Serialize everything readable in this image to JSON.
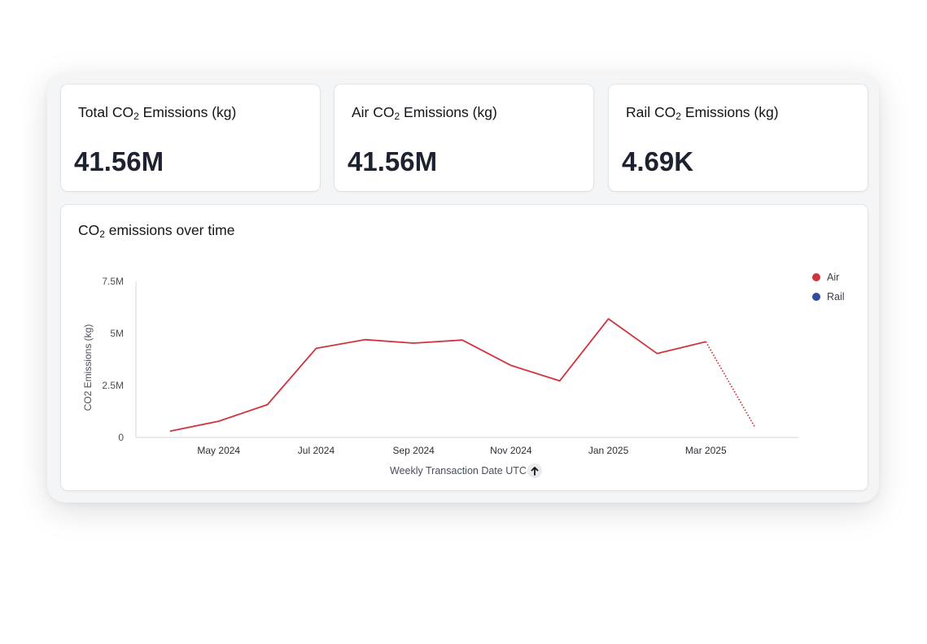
{
  "kpis": [
    {
      "title_pre": "Total CO",
      "title_sub": "2",
      "title_post": " Emissions (kg)",
      "value": "41.56M"
    },
    {
      "title_pre": "Air CO",
      "title_sub": "2",
      "title_post": " Emissions (kg)",
      "value": "41.56M"
    },
    {
      "title_pre": "Rail CO",
      "title_sub": "2",
      "title_post": " Emissions (kg)",
      "value": "4.69K"
    }
  ],
  "chart_card": {
    "title_pre": "CO",
    "title_sub": "2",
    "title_post": " emissions over time",
    "x_axis_title": "Weekly Transaction Date UTC",
    "sort_icon": "arrow-up-icon"
  },
  "chart_data": {
    "type": "line",
    "ylabel": "CO2 Emissions (kg)",
    "xlabel": "Weekly Transaction Date UTC",
    "ylim": [
      0,
      7500000
    ],
    "y_ticks": [
      {
        "value": 0,
        "label": "0"
      },
      {
        "value": 2500000,
        "label": "2.5M"
      },
      {
        "value": 5000000,
        "label": "5M"
      },
      {
        "value": 7500000,
        "label": "7.5M"
      }
    ],
    "x_ticks": [
      "May 2024",
      "Jul 2024",
      "Sep 2024",
      "Nov 2024",
      "Jan 2025",
      "Mar 2025"
    ],
    "x_tick_dates": [
      "2024-05",
      "2024-07",
      "2024-09",
      "2024-11",
      "2025-01",
      "2025-03"
    ],
    "grid": false,
    "legend": "top-right",
    "series": [
      {
        "name": "Air",
        "color": "#d0343c",
        "x": [
          "2024-04",
          "2024-05",
          "2024-06",
          "2024-07",
          "2024-08",
          "2024-09",
          "2024-10",
          "2024-11",
          "2024-12",
          "2025-01",
          "2025-02",
          "2025-03",
          "2025-04"
        ],
        "values": [
          300000,
          780000,
          1580000,
          4280000,
          4700000,
          4530000,
          4680000,
          3460000,
          2720000,
          5700000,
          4030000,
          4600000,
          520000
        ],
        "dotted_last_segment": true
      },
      {
        "name": "Rail",
        "color": "#2f4d9e",
        "x": [],
        "values": []
      }
    ]
  }
}
